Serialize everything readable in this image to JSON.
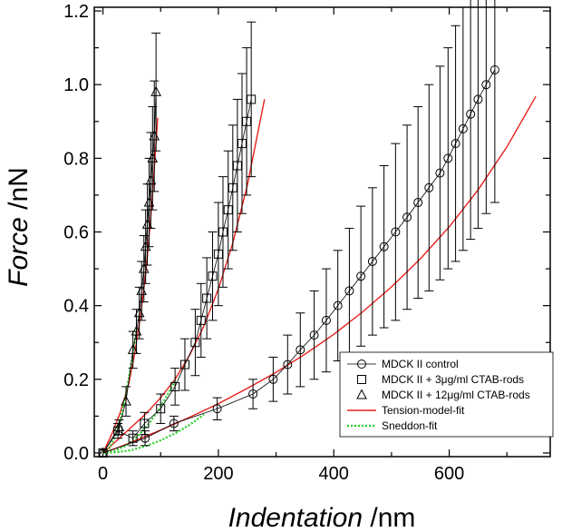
{
  "chart_data": {
    "type": "scatter",
    "title": "",
    "xlabel": "Indentation",
    "xunit": " /nm",
    "ylabel": "Force",
    "yunit": " /nN",
    "xlim": [
      -15,
      775
    ],
    "ylim": [
      -0.01,
      1.21
    ],
    "xticks": [
      0,
      200,
      400,
      600
    ],
    "yticks": [
      0.0,
      0.2,
      0.4,
      0.6,
      0.8,
      1.0,
      1.2
    ],
    "ytick_labels": [
      "0.0",
      "0.2",
      "0.4",
      "0.6",
      "0.8",
      "1.0",
      "1.2"
    ],
    "legend_position": "bottom-right",
    "series": [
      {
        "name": "MDCK II control",
        "marker": "circle",
        "x": [
          0,
          73,
          123,
          198,
          260,
          295,
          320,
          342,
          366,
          387,
          407,
          427,
          447,
          467,
          487,
          507,
          527,
          546,
          565,
          584,
          598,
          611,
          624,
          637,
          650,
          664,
          679
        ],
        "y": [
          0.0,
          0.04,
          0.08,
          0.12,
          0.16,
          0.2,
          0.24,
          0.28,
          0.32,
          0.36,
          0.4,
          0.44,
          0.48,
          0.52,
          0.56,
          0.6,
          0.64,
          0.68,
          0.72,
          0.76,
          0.8,
          0.84,
          0.88,
          0.92,
          0.96,
          1.0,
          1.04
        ],
        "err": [
          0.0,
          0.02,
          0.02,
          0.03,
          0.04,
          0.06,
          0.08,
          0.1,
          0.12,
          0.14,
          0.15,
          0.17,
          0.19,
          0.2,
          0.22,
          0.24,
          0.25,
          0.26,
          0.28,
          0.29,
          0.3,
          0.32,
          0.33,
          0.34,
          0.35,
          0.35,
          0.36
        ]
      },
      {
        "name": "MDCK II + 3μg/ml CTAB-rods",
        "marker": "square",
        "x": [
          0,
          26,
          52,
          72,
          100,
          125,
          142,
          160,
          170,
          180,
          190,
          200,
          208,
          217,
          225,
          233,
          241,
          249,
          257
        ],
        "y": [
          0.0,
          0.06,
          0.04,
          0.08,
          0.12,
          0.18,
          0.24,
          0.3,
          0.36,
          0.42,
          0.48,
          0.54,
          0.6,
          0.66,
          0.72,
          0.78,
          0.84,
          0.9,
          0.96
        ],
        "err": [
          0.0,
          0.02,
          0.02,
          0.03,
          0.04,
          0.05,
          0.07,
          0.09,
          0.1,
          0.11,
          0.12,
          0.14,
          0.15,
          0.16,
          0.17,
          0.18,
          0.19,
          0.2,
          0.21
        ]
      },
      {
        "name": "MDCK II + 12μg/ml CTAB-rods",
        "marker": "triangle",
        "x": [
          0,
          28,
          40,
          52,
          58,
          63,
          67,
          71,
          74,
          77,
          80,
          83,
          86,
          89,
          92
        ],
        "y": [
          0.0,
          0.07,
          0.14,
          0.28,
          0.33,
          0.38,
          0.44,
          0.5,
          0.56,
          0.62,
          0.68,
          0.74,
          0.8,
          0.86,
          0.98
        ],
        "err": [
          0.0,
          0.02,
          0.04,
          0.05,
          0.06,
          0.07,
          0.08,
          0.09,
          0.1,
          0.11,
          0.12,
          0.13,
          0.14,
          0.15,
          0.16
        ]
      }
    ],
    "fits": [
      {
        "name": "Tension-model-fit",
        "style": "solid",
        "color": "#e8201c",
        "curves": [
          {
            "x": [
              0,
              30,
              60,
              100,
              150,
              200,
              250,
              300,
              350,
              400,
              450,
              500,
              550,
              600,
              650,
              700,
              750
            ],
            "y": [
              0.0,
              0.017,
              0.036,
              0.062,
              0.097,
              0.134,
              0.175,
              0.219,
              0.268,
              0.322,
              0.383,
              0.451,
              0.527,
              0.614,
              0.714,
              0.831,
              0.968
            ]
          },
          {
            "x": [
              0,
              25,
              50,
              75,
              100,
              125,
              150,
              175,
              200,
              225,
              250,
              280
            ],
            "y": [
              0.0,
              0.035,
              0.071,
              0.107,
              0.15,
              0.2,
              0.265,
              0.345,
              0.445,
              0.57,
              0.725,
              0.96
            ]
          },
          {
            "x": [
              0,
              15,
              30,
              45,
              55,
              65,
              75,
              85,
              95
            ],
            "y": [
              0.0,
              0.05,
              0.11,
              0.19,
              0.27,
              0.37,
              0.5,
              0.68,
              0.91
            ]
          }
        ]
      },
      {
        "name": "Sneddon-fit",
        "style": "dotted",
        "color": "#22d022",
        "curves": [
          {
            "x": [
              0,
              25,
              50,
              75,
              100,
              125,
              150,
              175
            ],
            "y": [
              0.0,
              0.002,
              0.008,
              0.019,
              0.034,
              0.053,
              0.076,
              0.104
            ]
          },
          {
            "x": [
              0,
              20,
              40,
              60,
              80,
              100,
              125
            ],
            "y": [
              0.0,
              0.005,
              0.02,
              0.045,
              0.08,
              0.125,
              0.195
            ]
          },
          {
            "x": [
              0,
              10,
              20,
              30,
              40,
              50,
              58
            ],
            "y": [
              0.0,
              0.01,
              0.04,
              0.09,
              0.16,
              0.25,
              0.335
            ]
          }
        ]
      }
    ]
  }
}
